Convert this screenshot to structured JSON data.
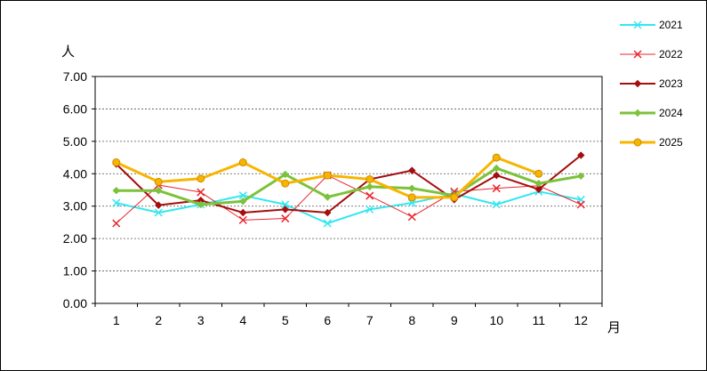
{
  "chart_data": {
    "type": "line",
    "ylabel": "人",
    "xlabel": "月",
    "ylim": [
      0,
      7
    ],
    "y_tick_labels": [
      "0.00",
      "1.00",
      "2.00",
      "3.00",
      "4.00",
      "5.00",
      "6.00",
      "7.00"
    ],
    "categories": [
      "1",
      "2",
      "3",
      "4",
      "5",
      "6",
      "7",
      "8",
      "9",
      "10",
      "11",
      "12"
    ],
    "grid": "horizontal dashed",
    "legend_position": "right",
    "series": [
      {
        "name": "2021",
        "color": "#33e6f0",
        "marker": "x",
        "line_width": 2,
        "values": [
          3.1,
          2.8,
          3.05,
          3.33,
          3.05,
          2.47,
          2.9,
          3.1,
          3.38,
          3.05,
          3.45,
          3.2
        ]
      },
      {
        "name": "2022",
        "color": "#e8262b",
        "marker": "x",
        "line_width": 1,
        "values": [
          2.47,
          3.65,
          3.43,
          2.57,
          2.62,
          3.95,
          3.32,
          2.67,
          3.45,
          3.55,
          3.63,
          3.05
        ]
      },
      {
        "name": "2023",
        "color": "#a50e0e",
        "marker": "diamond",
        "line_width": 2,
        "values": [
          4.3,
          3.03,
          3.18,
          2.8,
          2.9,
          2.8,
          3.83,
          4.1,
          3.2,
          3.95,
          3.52,
          4.57
        ]
      },
      {
        "name": "2024",
        "color": "#7cc23a",
        "marker": "diamond",
        "line_width": 3,
        "values": [
          3.48,
          3.48,
          3.05,
          3.15,
          3.98,
          3.28,
          3.6,
          3.55,
          3.33,
          4.17,
          3.7,
          3.93
        ]
      },
      {
        "name": "2025",
        "color": "#f7b500",
        "marker": "circle",
        "line_width": 3,
        "values": [
          4.35,
          3.75,
          3.85,
          4.35,
          3.7,
          3.95,
          3.83,
          3.27,
          3.27,
          4.5,
          4.0,
          null
        ]
      }
    ]
  }
}
